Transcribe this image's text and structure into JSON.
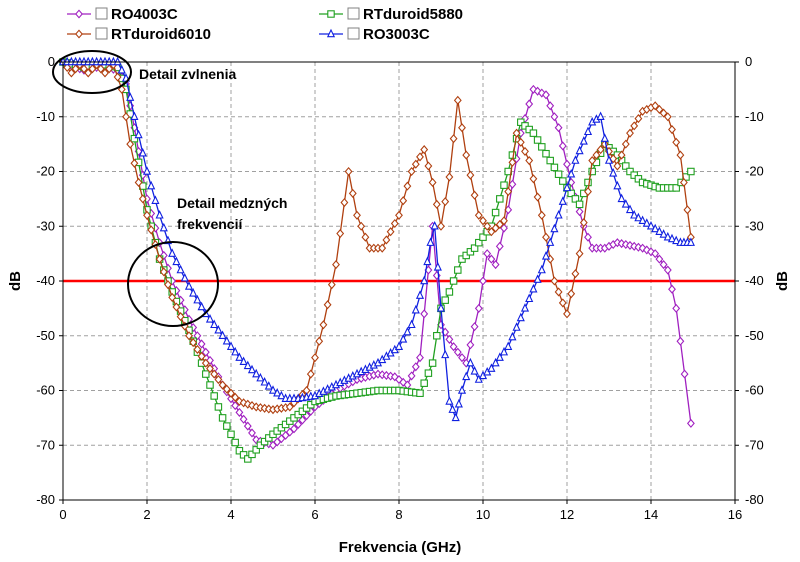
{
  "chart_data": {
    "type": "line",
    "title": "",
    "xlabel": "Frekvencia (GHz)",
    "ylabel": "dB",
    "ylabel_right": "dB",
    "xlim": [
      0,
      16
    ],
    "ylim": [
      -80,
      0
    ],
    "x_ticks": [
      0,
      2,
      4,
      6,
      8,
      10,
      12,
      14,
      16
    ],
    "y_ticks": [
      0,
      -10,
      -20,
      -30,
      -40,
      -50,
      -60,
      -70,
      -80
    ],
    "x_tick_labels": [
      "0",
      "2",
      "4",
      "6",
      "8",
      "10",
      "12",
      "14",
      "16"
    ],
    "y_tick_labels": [
      "0",
      "-10",
      "-20",
      "-30",
      "-40",
      "-50",
      "-60",
      "-70",
      "-80"
    ],
    "grid": true,
    "reference_line": {
      "y": -40,
      "color": "#ff0000"
    },
    "legend_position": "top",
    "series": [
      {
        "name": "RO4003C",
        "color": "#a020c0",
        "marker": "diamond",
        "x": [
          0,
          0.3,
          0.5,
          0.8,
          1.0,
          1.3,
          1.5,
          1.7,
          2.0,
          2.3,
          2.6,
          3.0,
          3.4,
          3.8,
          4.2,
          4.6,
          5.0,
          5.5,
          6.0,
          6.5,
          7.0,
          7.5,
          7.9,
          8.2,
          8.5,
          8.8,
          9.0,
          9.3,
          9.6,
          9.9,
          10.1,
          10.3,
          10.6,
          10.9,
          11.2,
          11.5,
          11.8,
          12.1,
          12.4,
          12.6,
          12.9,
          13.2,
          13.5,
          13.8,
          14.1,
          14.4,
          14.6,
          14.8,
          14.95
        ],
        "y": [
          0,
          -1,
          -1.5,
          -1,
          -1,
          -1.5,
          -4,
          -12,
          -25,
          -33,
          -40,
          -47,
          -53,
          -59,
          -64,
          -69,
          -70,
          -67,
          -63,
          -60,
          -58,
          -57,
          -57.5,
          -59,
          -54,
          -30,
          -48,
          -52,
          -55,
          -45,
          -35,
          -37,
          -27,
          -13,
          -5,
          -6,
          -12,
          -22,
          -30,
          -34,
          -34,
          -33,
          -33.5,
          -34,
          -35,
          -38,
          -45,
          -57,
          -66
        ]
      },
      {
        "name": "RTduroid5880",
        "color": "#20a020",
        "marker": "square",
        "x": [
          0,
          0.3,
          0.5,
          0.8,
          1.0,
          1.3,
          1.5,
          1.7,
          2.0,
          2.3,
          2.6,
          3.0,
          3.4,
          3.8,
          4.2,
          4.4,
          4.7,
          5.0,
          5.5,
          6.0,
          6.5,
          7.0,
          7.5,
          8.0,
          8.5,
          8.8,
          9.0,
          9.2,
          9.5,
          9.8,
          10.2,
          10.6,
          10.9,
          11.2,
          11.6,
          12.0,
          12.3,
          12.6,
          12.9,
          13.2,
          13.5,
          13.8,
          14.2,
          14.6,
          14.95
        ],
        "y": [
          0,
          -0.5,
          -1,
          -0.5,
          -0.5,
          -1,
          -5,
          -14,
          -27,
          -36,
          -42,
          -49,
          -57,
          -65,
          -71,
          -72.5,
          -70,
          -68,
          -65,
          -62,
          -61,
          -60.5,
          -60,
          -60,
          -60.5,
          -55,
          -45,
          -42,
          -36,
          -34,
          -30,
          -20,
          -11,
          -13,
          -18,
          -23,
          -26,
          -20,
          -15,
          -17,
          -20,
          -22,
          -23,
          -23,
          -20
        ]
      },
      {
        "name": "RTduroid6010",
        "color": "#b04010",
        "marker": "diamond",
        "x": [
          0,
          0.2,
          0.4,
          0.6,
          0.8,
          1.0,
          1.2,
          1.4,
          1.6,
          1.8,
          2.0,
          2.3,
          2.6,
          3.0,
          3.4,
          3.8,
          4.2,
          4.6,
          5.0,
          5.4,
          5.8,
          6.2,
          6.5,
          6.8,
          7.0,
          7.3,
          7.6,
          8.0,
          8.3,
          8.6,
          8.8,
          9.0,
          9.2,
          9.4,
          9.6,
          9.9,
          10.2,
          10.5,
          10.8,
          11.1,
          11.4,
          11.7,
          12.0,
          12.3,
          12.6,
          12.9,
          13.2,
          13.5,
          13.8,
          14.1,
          14.4,
          14.7,
          14.95
        ],
        "y": [
          0,
          -2,
          -0.5,
          -2,
          -0.5,
          -2,
          -0.5,
          -5,
          -15,
          -22,
          -28,
          -36,
          -43,
          -50,
          -55,
          -59,
          -62,
          -63,
          -63.5,
          -63,
          -60,
          -48,
          -37,
          -20,
          -28,
          -34,
          -34,
          -28,
          -20,
          -16,
          -22,
          -30,
          -21,
          -7,
          -17,
          -28,
          -31,
          -29,
          -13,
          -18,
          -28,
          -40,
          -46,
          -35,
          -18,
          -15,
          -19,
          -13,
          -9,
          -8,
          -10,
          -17,
          -32
        ]
      },
      {
        "name": "RO3003C",
        "color": "#1020e0",
        "marker": "triangle",
        "x": [
          0,
          0.3,
          0.5,
          0.8,
          1.0,
          1.3,
          1.5,
          1.7,
          2.0,
          2.3,
          2.6,
          3.0,
          3.4,
          3.8,
          4.2,
          4.6,
          5.0,
          5.3,
          5.6,
          6.0,
          6.5,
          7.0,
          7.5,
          8.0,
          8.3,
          8.6,
          8.75,
          8.85,
          9.0,
          9.2,
          9.35,
          9.5,
          9.7,
          9.9,
          10.2,
          10.6,
          11.0,
          11.4,
          11.8,
          12.2,
          12.6,
          12.8,
          13.0,
          13.3,
          13.6,
          14.0,
          14.4,
          14.7,
          14.95
        ],
        "y": [
          0,
          0,
          0,
          0,
          0,
          0,
          -3,
          -10,
          -20,
          -28,
          -35,
          -41,
          -46,
          -50,
          -54,
          -57,
          -60,
          -61.5,
          -61.5,
          -61,
          -59,
          -57,
          -55,
          -52,
          -48,
          -40,
          -33,
          -30,
          -45,
          -62,
          -65,
          -60,
          -55,
          -58,
          -56,
          -52,
          -45,
          -38,
          -28,
          -18,
          -11,
          -10,
          -18,
          -25,
          -28,
          -30,
          -32,
          -33,
          -33
        ]
      }
    ],
    "annotations": [
      {
        "text": "Detail zvlnenia"
      },
      {
        "text": "Detail medzných"
      },
      {
        "text": "frekvencií"
      }
    ]
  }
}
